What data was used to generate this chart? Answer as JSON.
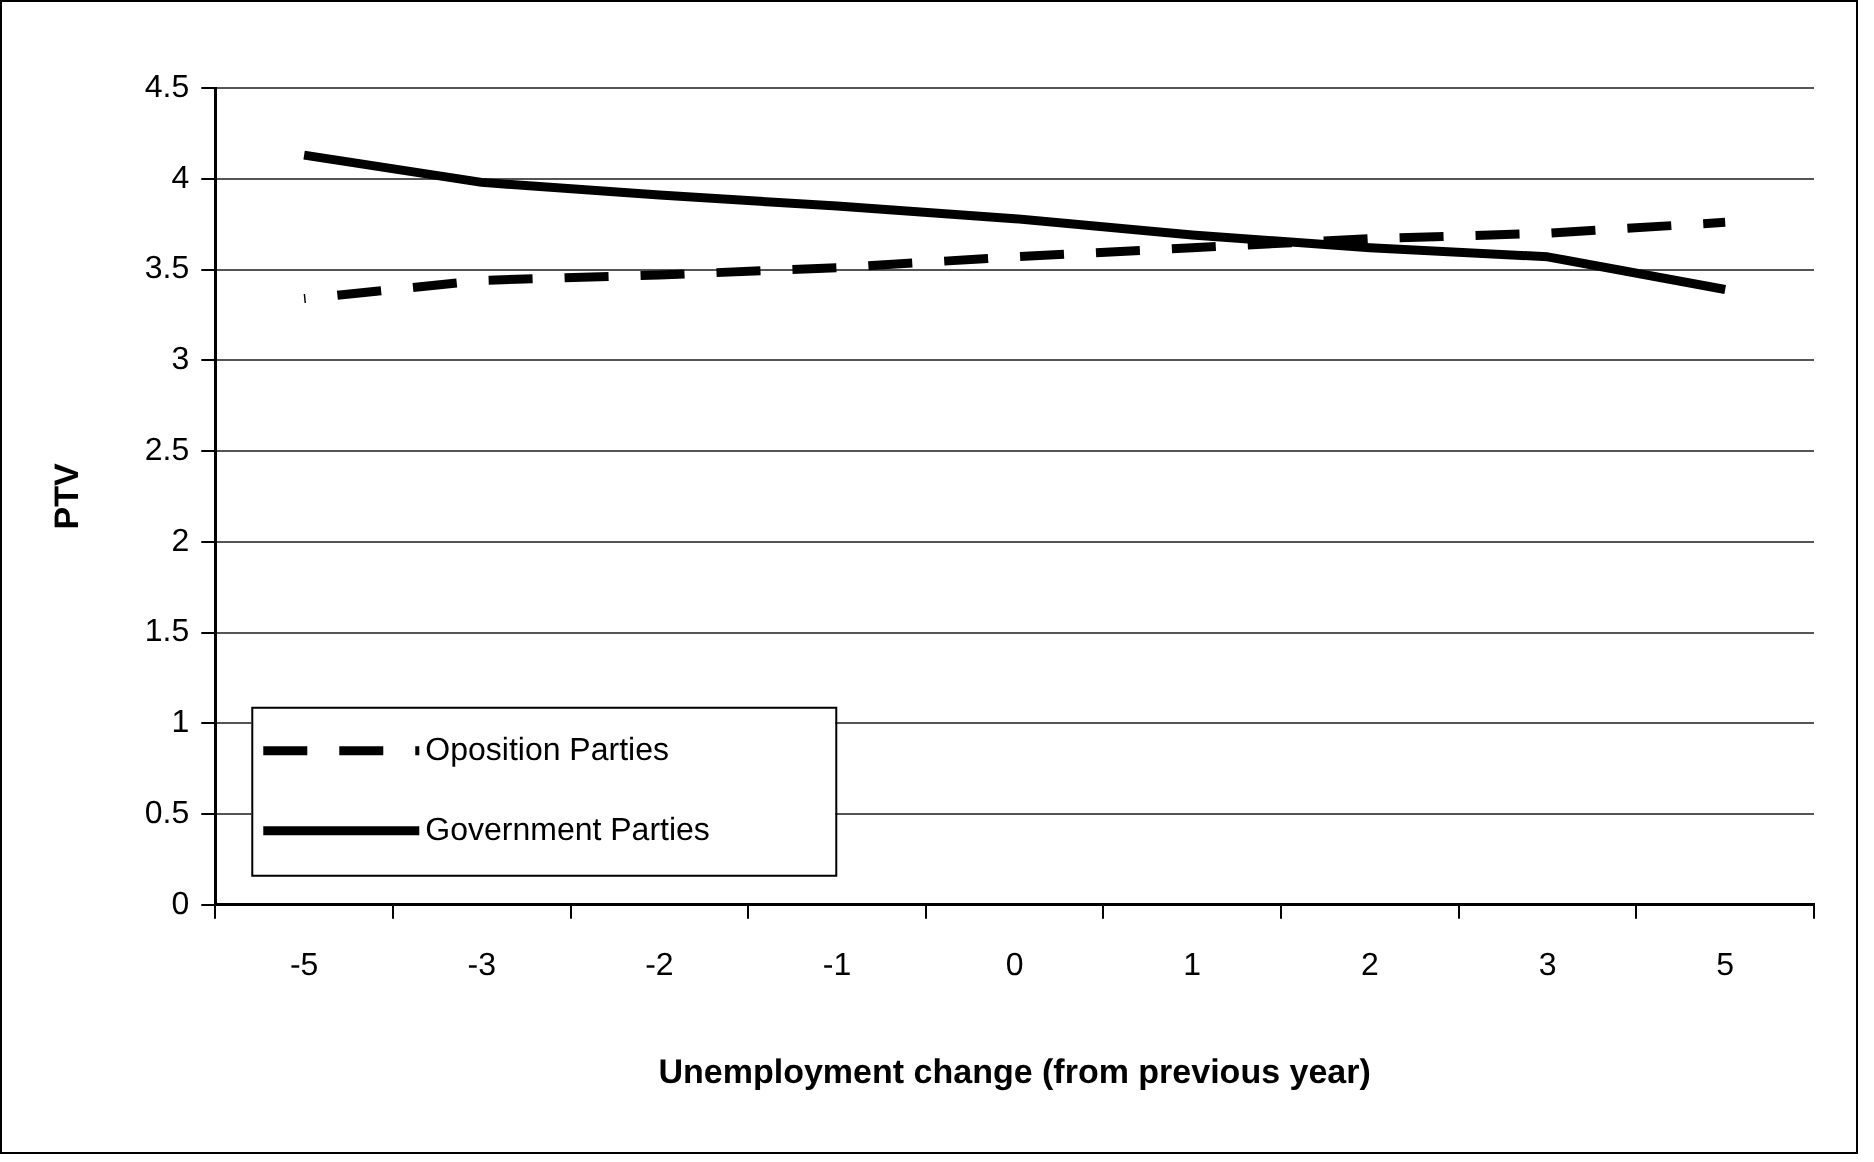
{
  "chart_data": {
    "type": "line",
    "xlabel": "Unemployment change (from previous year)",
    "ylabel": "PTV",
    "categories": [
      "-5",
      "-3",
      "-2",
      "-1",
      "0",
      "1",
      "2",
      "3",
      "5"
    ],
    "series": [
      {
        "name": "Oposition Parties",
        "color": "#000000",
        "line_style": "dashed",
        "values": [
          3.34,
          3.44,
          3.47,
          3.51,
          3.57,
          3.62,
          3.67,
          3.7,
          3.76
        ]
      },
      {
        "name": "Government Parties",
        "color": "#000000",
        "line_style": "solid",
        "values": [
          4.13,
          3.98,
          3.91,
          3.85,
          3.78,
          3.69,
          3.62,
          3.57,
          3.39
        ]
      }
    ],
    "ylim": [
      0,
      4.5
    ],
    "yticks": [
      0,
      0.5,
      1,
      1.5,
      2,
      2.5,
      3,
      3.5,
      4,
      4.5
    ],
    "grid": "y",
    "legend": "bottom left",
    "marker": "none"
  }
}
